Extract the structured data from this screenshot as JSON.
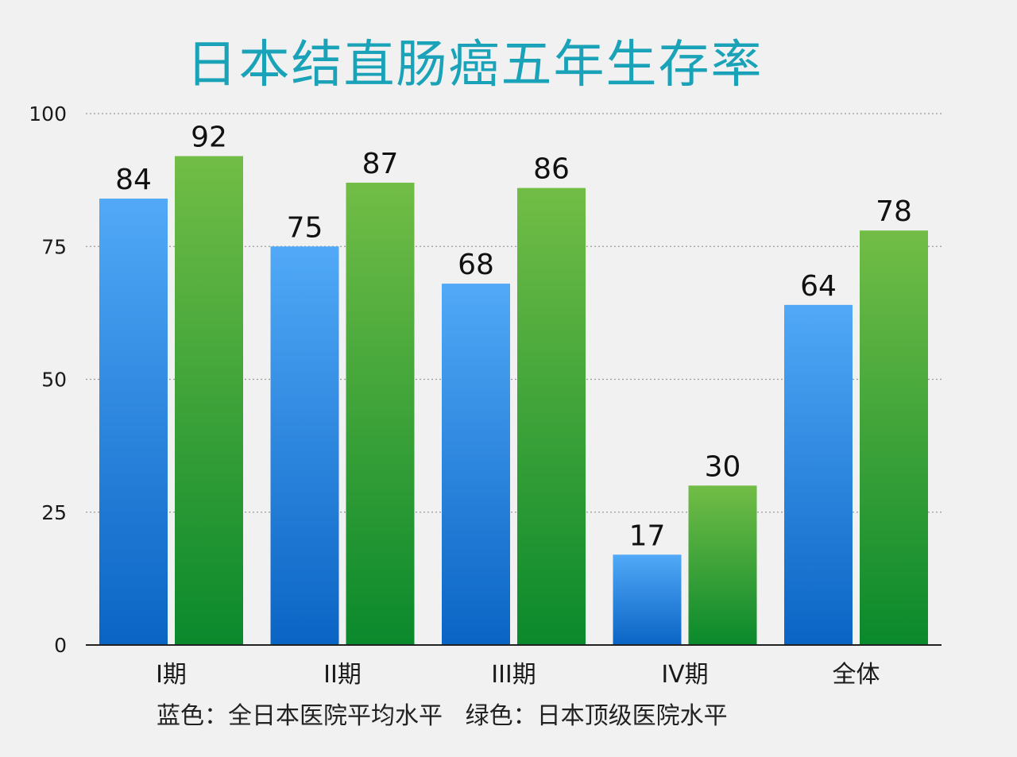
{
  "chart_data": {
    "type": "bar",
    "title": "日本结直肠癌五年生存率",
    "categories": [
      "I期",
      "II期",
      "III期",
      "IV期",
      "全体"
    ],
    "series": [
      {
        "values": [
          84,
          75,
          68,
          17,
          64
        ]
      },
      {
        "values": [
          92,
          87,
          86,
          30,
          78
        ]
      }
    ],
    "ylim": [
      0,
      100
    ],
    "yticks": [
      "0",
      "25",
      "50",
      "75",
      "100"
    ],
    "grid": true,
    "gridline_style": "dotted",
    "xlabel": "",
    "ylabel": ""
  },
  "caption": "蓝色：全日本医院平均水平   绿色：日本顶级医院水平",
  "colors": {
    "title": "#1aa3b8",
    "blue_top": "#51a9f7",
    "blue_bottom": "#0a64c4",
    "green_top": "#72bd46",
    "green_bottom": "#0a892c",
    "grid": "#9a9a9a",
    "axis": "#222222"
  }
}
